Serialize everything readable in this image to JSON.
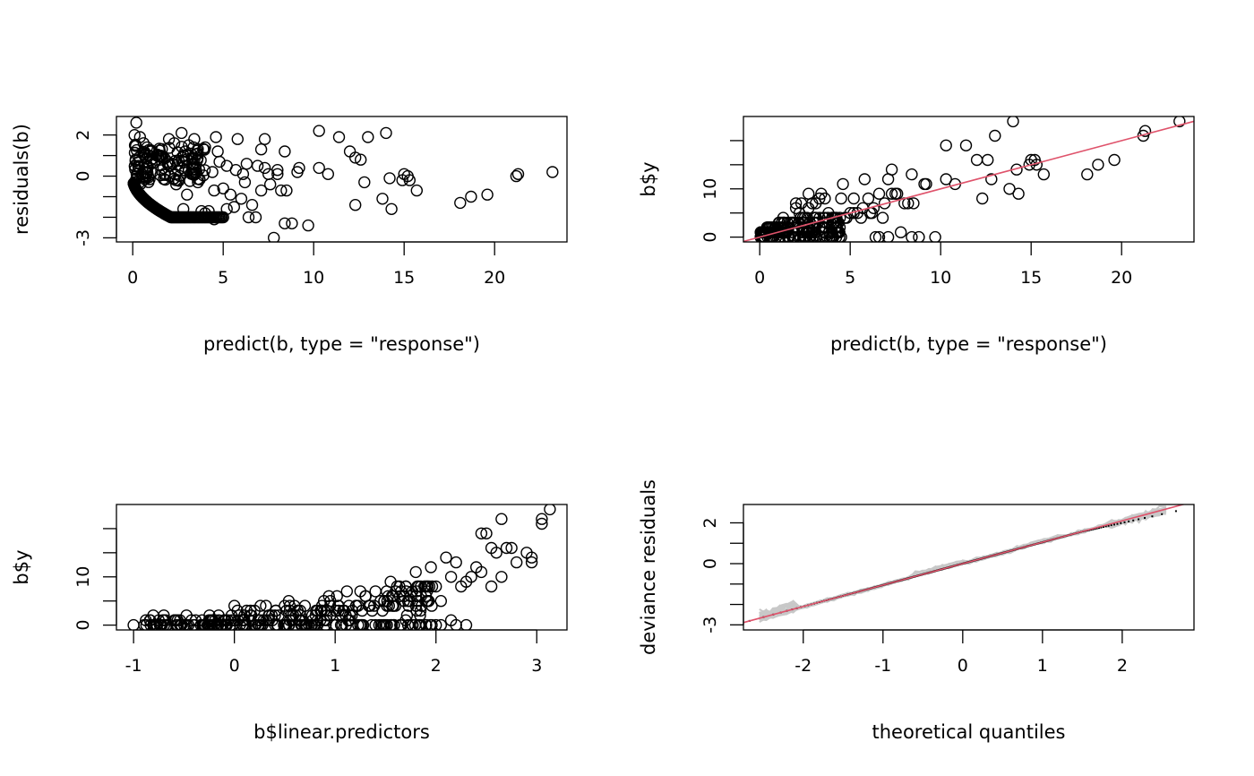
{
  "chart_data": [
    {
      "id": "p1",
      "type": "scatter",
      "title": "",
      "xlabel": "predict(b, type = \"response\")",
      "ylabel": "residuals(b)",
      "xlim": [
        -0.9,
        24
      ],
      "ylim": [
        -3.2,
        2.9
      ],
      "xticks": [
        0,
        5,
        10,
        15,
        20
      ],
      "xtick_labels": [
        "0",
        "5",
        "10",
        "15",
        "20"
      ],
      "yticks": [
        -3,
        -2,
        -1,
        0,
        1,
        2
      ],
      "ytick_labels": [
        "-3",
        "",
        "",
        "0",
        "",
        "2"
      ],
      "grid": false,
      "points": [
        [
          0.2,
          2.6
        ],
        [
          0.1,
          2.0
        ],
        [
          0.4,
          1.9
        ],
        [
          0.6,
          1.6
        ],
        [
          0.8,
          1.4
        ],
        [
          1.0,
          1.2
        ],
        [
          2.0,
          1.8
        ],
        [
          2.3,
          1.6
        ],
        [
          2.7,
          2.1
        ],
        [
          3.1,
          1.5
        ],
        [
          3.4,
          1.8
        ],
        [
          4.6,
          1.9
        ],
        [
          5.8,
          1.8
        ],
        [
          7.3,
          1.8
        ],
        [
          7.1,
          1.3
        ],
        [
          8.4,
          1.2
        ],
        [
          10.3,
          2.2
        ],
        [
          11.4,
          1.9
        ],
        [
          13.0,
          1.9
        ],
        [
          14.0,
          2.1
        ],
        [
          12.0,
          1.2
        ],
        [
          12.3,
          0.9
        ],
        [
          12.6,
          0.8
        ],
        [
          10.3,
          0.4
        ],
        [
          10.8,
          0.1
        ],
        [
          9.2,
          0.4
        ],
        [
          9.1,
          0.2
        ],
        [
          14.2,
          -0.1
        ],
        [
          15.0,
          0.1
        ],
        [
          15.2,
          0.0
        ],
        [
          15.3,
          -0.2
        ],
        [
          15.7,
          -0.7
        ],
        [
          14.9,
          -0.2
        ],
        [
          12.8,
          -0.3
        ],
        [
          12.3,
          -1.4
        ],
        [
          13.8,
          -1.1
        ],
        [
          14.3,
          -1.6
        ],
        [
          18.1,
          -1.3
        ],
        [
          18.7,
          -1.0
        ],
        [
          19.6,
          -0.9
        ],
        [
          21.2,
          0.0
        ],
        [
          21.3,
          0.1
        ],
        [
          23.2,
          0.2
        ],
        [
          7.8,
          -3.0
        ],
        [
          9.7,
          -2.4
        ],
        [
          8.8,
          -2.3
        ],
        [
          8.4,
          -2.3
        ],
        [
          6.4,
          -2.0
        ],
        [
          6.8,
          -2.0
        ],
        [
          4.5,
          -2.1
        ],
        [
          4.0,
          -1.8
        ],
        [
          5.6,
          -1.5
        ],
        [
          6.0,
          -1.1
        ],
        [
          6.6,
          -1.4
        ],
        [
          7.1,
          -0.7
        ],
        [
          7.6,
          -0.4
        ],
        [
          8.2,
          -0.7
        ],
        [
          8.5,
          -0.7
        ],
        [
          6.2,
          -0.3
        ],
        [
          5.7,
          0.3
        ],
        [
          6.1,
          0.1
        ],
        [
          7.3,
          0.4
        ],
        [
          7.5,
          0.1
        ],
        [
          8.0,
          0.1
        ],
        [
          4.4,
          0.2
        ],
        [
          4.5,
          -0.7
        ],
        [
          5.0,
          -0.6
        ],
        [
          3.6,
          -0.3
        ],
        [
          3.0,
          -0.9
        ],
        [
          2.4,
          -0.4
        ],
        [
          4.7,
          1.2
        ],
        [
          4.0,
          1.4
        ],
        [
          3.6,
          1.1
        ],
        [
          2.9,
          1.2
        ],
        [
          3.3,
          0.9
        ],
        [
          2.7,
          0.4
        ],
        [
          3.1,
          0.3
        ],
        [
          2.2,
          0.6
        ],
        [
          1.7,
          0.4
        ],
        [
          1.3,
          0.8
        ],
        [
          4.8,
          0.7
        ],
        [
          5.2,
          0.5
        ],
        [
          6.3,
          0.6
        ],
        [
          6.9,
          0.5
        ],
        [
          8.0,
          0.3
        ],
        [
          5.4,
          -0.9
        ],
        [
          5.2,
          -1.6
        ],
        [
          3.8,
          -1.7
        ],
        [
          4.2,
          -1.7
        ],
        [
          2.8,
          -1.6
        ]
      ],
      "dense_cloud": {
        "lower_curve_x": [
          0.05,
          5.0
        ],
        "upper_band_x": [
          0.1,
          4.0
        ],
        "upper_band_y": [
          -0.4,
          1.6
        ]
      },
      "marker": "open-circle",
      "marker_color": "#000000"
    },
    {
      "id": "p2",
      "type": "scatter",
      "title": "",
      "xlabel": "predict(b, type = \"response\")",
      "ylabel": "b$y",
      "xlim": [
        -0.9,
        24
      ],
      "ylim": [
        -1,
        25
      ],
      "xticks": [
        0,
        5,
        10,
        15,
        20
      ],
      "xtick_labels": [
        "0",
        "5",
        "10",
        "15",
        "20"
      ],
      "yticks": [
        0,
        5,
        10,
        15,
        20
      ],
      "ytick_labels": [
        "0",
        "",
        "10",
        "",
        ""
      ],
      "grid": false,
      "reference_line": {
        "intercept": 0,
        "slope": 1,
        "color": "#DF536B"
      },
      "points": [
        [
          23.2,
          24
        ],
        [
          21.3,
          22
        ],
        [
          21.2,
          21
        ],
        [
          19.6,
          16
        ],
        [
          18.7,
          15
        ],
        [
          18.1,
          13
        ],
        [
          15.7,
          13
        ],
        [
          15.3,
          15
        ],
        [
          15.0,
          16
        ],
        [
          14.9,
          15
        ],
        [
          15.2,
          16
        ],
        [
          14.3,
          9
        ],
        [
          14.0,
          24
        ],
        [
          14.2,
          14
        ],
        [
          13.8,
          10
        ],
        [
          13.0,
          21
        ],
        [
          12.8,
          12
        ],
        [
          12.6,
          16
        ],
        [
          12.3,
          8
        ],
        [
          12.0,
          16
        ],
        [
          11.4,
          19
        ],
        [
          10.8,
          11
        ],
        [
          10.3,
          19
        ],
        [
          10.3,
          12
        ],
        [
          9.7,
          0
        ],
        [
          9.2,
          11
        ],
        [
          9.1,
          11
        ],
        [
          8.8,
          0
        ],
        [
          8.5,
          7
        ],
        [
          8.4,
          13
        ],
        [
          8.4,
          0
        ],
        [
          8.2,
          7
        ],
        [
          8.0,
          7
        ],
        [
          7.8,
          1
        ],
        [
          7.6,
          9
        ],
        [
          7.5,
          9
        ],
        [
          7.3,
          14
        ],
        [
          7.3,
          9
        ],
        [
          7.1,
          12
        ],
        [
          7.1,
          0
        ],
        [
          6.9,
          7
        ],
        [
          6.8,
          4
        ],
        [
          6.6,
          0
        ],
        [
          6.6,
          9
        ],
        [
          6.4,
          0
        ],
        [
          6.3,
          6
        ],
        [
          6.2,
          5
        ],
        [
          6.1,
          5
        ],
        [
          6.0,
          8
        ],
        [
          5.8,
          12
        ],
        [
          5.7,
          6
        ],
        [
          5.6,
          4
        ],
        [
          5.4,
          5
        ],
        [
          5.2,
          5
        ],
        [
          5.2,
          8
        ],
        [
          5.0,
          5
        ],
        [
          4.8,
          4
        ],
        [
          4.7,
          4
        ],
        [
          4.6,
          11
        ],
        [
          4.5,
          8
        ],
        [
          4.5,
          0
        ],
        [
          4.4,
          0
        ],
        [
          4.0,
          4
        ],
        [
          4.0,
          0
        ],
        [
          3.8,
          5
        ],
        [
          3.6,
          8
        ],
        [
          3.6,
          0
        ],
        [
          3.4,
          9
        ],
        [
          3.3,
          8
        ],
        [
          3.1,
          7
        ],
        [
          3.1,
          3
        ],
        [
          3.0,
          0
        ],
        [
          2.9,
          7
        ],
        [
          2.8,
          0
        ],
        [
          2.7,
          9
        ],
        [
          2.7,
          6
        ],
        [
          2.4,
          3
        ],
        [
          2.3,
          7
        ],
        [
          2.2,
          5
        ],
        [
          2.0,
          7
        ],
        [
          2.0,
          6
        ],
        [
          1.7,
          3
        ],
        [
          1.3,
          4
        ]
      ],
      "dense_cloud": {
        "x_range": [
          0.05,
          4.5
        ],
        "y_values": [
          0,
          1,
          2,
          3,
          4
        ]
      },
      "marker": "open-circle",
      "marker_color": "#000000"
    },
    {
      "id": "p3",
      "type": "scatter",
      "title": "",
      "xlabel": "b$linear.predictors",
      "ylabel": "b$y",
      "xlim": [
        -1.17,
        3.3
      ],
      "ylim": [
        -1,
        25
      ],
      "xticks": [
        -1,
        0,
        1,
        2,
        3
      ],
      "xtick_labels": [
        "-1",
        "0",
        "1",
        "2",
        "3"
      ],
      "yticks": [
        0,
        5,
        10,
        15,
        20
      ],
      "ytick_labels": [
        "0",
        "",
        "10",
        "",
        ""
      ],
      "grid": false,
      "points": [
        [
          -1.0,
          0
        ],
        [
          -0.7,
          2
        ],
        [
          -0.1,
          1
        ],
        [
          0.0,
          4
        ],
        [
          0.1,
          2
        ],
        [
          0.5,
          4
        ],
        [
          0.55,
          3
        ],
        [
          0.7,
          4
        ],
        [
          0.95,
          4
        ],
        [
          1.25,
          7
        ],
        [
          1.3,
          6
        ],
        [
          1.4,
          7
        ],
        [
          1.45,
          5
        ],
        [
          1.55,
          9
        ],
        [
          1.6,
          7
        ],
        [
          1.7,
          8
        ],
        [
          1.75,
          6
        ],
        [
          1.8,
          11
        ],
        [
          1.85,
          8
        ],
        [
          1.9,
          6
        ],
        [
          1.95,
          12
        ],
        [
          2.0,
          8
        ],
        [
          2.05,
          5
        ],
        [
          2.1,
          14
        ],
        [
          2.15,
          10
        ],
        [
          2.2,
          13
        ],
        [
          2.25,
          8
        ],
        [
          2.35,
          10
        ],
        [
          2.4,
          12
        ],
        [
          2.45,
          19
        ],
        [
          2.5,
          19
        ],
        [
          2.55,
          16
        ],
        [
          2.6,
          15
        ],
        [
          2.65,
          22
        ],
        [
          2.7,
          16
        ],
        [
          2.75,
          16
        ],
        [
          2.8,
          13
        ],
        [
          2.9,
          15
        ],
        [
          2.95,
          14
        ],
        [
          2.95,
          13
        ],
        [
          3.05,
          21
        ],
        [
          3.05,
          22
        ],
        [
          3.13,
          24
        ],
        [
          2.55,
          8
        ],
        [
          2.65,
          10
        ],
        [
          2.45,
          11
        ],
        [
          2.3,
          9
        ],
        [
          2.0,
          0
        ],
        [
          2.05,
          0
        ],
        [
          2.15,
          1
        ],
        [
          2.2,
          0
        ],
        [
          2.3,
          0
        ],
        [
          1.85,
          0
        ],
        [
          1.7,
          1
        ],
        [
          1.65,
          0
        ],
        [
          1.55,
          0
        ],
        [
          1.9,
          0
        ]
      ],
      "dense_cloud": {
        "x_range": [
          -0.9,
          2.0
        ],
        "y_values": [
          0,
          1,
          2,
          3,
          4,
          5,
          6,
          7,
          8
        ]
      },
      "marker": "open-circle",
      "marker_color": "#000000"
    },
    {
      "id": "p4",
      "type": "line",
      "title": "",
      "xlabel": "theoretical quantiles",
      "ylabel": "deviance residuals",
      "xlim": [
        -2.75,
        2.9
      ],
      "ylim": [
        -3.25,
        2.9
      ],
      "xticks": [
        -2,
        -1,
        0,
        1,
        2
      ],
      "xtick_labels": [
        "-2",
        "-1",
        "0",
        "1",
        "2"
      ],
      "yticks": [
        -3,
        -2,
        -1,
        0,
        1,
        2
      ],
      "ytick_labels": [
        "-3",
        "",
        "",
        "0",
        "",
        "2"
      ],
      "grid": false,
      "reference_line": {
        "intercept": 0,
        "slope": 1.05,
        "color": "#DF536B"
      },
      "simulation_bands": {
        "count": 20,
        "color": "#C8C8C8"
      },
      "qq_points": {
        "n": 400,
        "color": "#000000"
      }
    }
  ]
}
